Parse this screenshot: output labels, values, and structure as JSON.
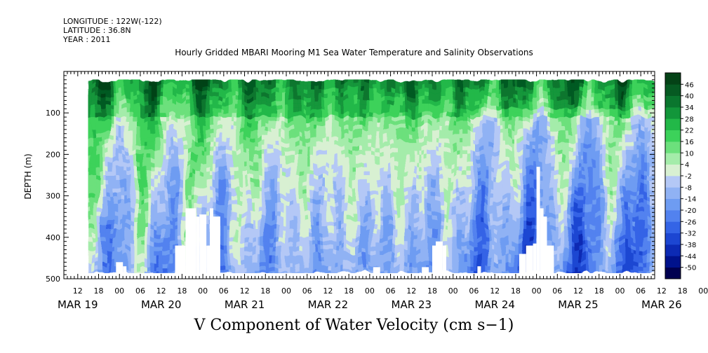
{
  "header": {
    "longitude": "LONGITUDE : 122W(-122)",
    "latitude": "LATITUDE : 36.8N",
    "year": "YEAR : 2011"
  },
  "chart_data": {
    "type": "heatmap",
    "title": "Hourly Gridded MBARI Mooring M1 Sea Water Temperature and Salinity Observations",
    "xlabel": "",
    "ylabel": "DEPTH (m)",
    "value_label": "V Component of Water Velocity (cm s-1)",
    "x_range_hours": [
      "MAR 19 08:00",
      "MAR 26 10:00"
    ],
    "x_hour_ticks": [
      "12",
      "18",
      "00",
      "06",
      "12",
      "18",
      "00",
      "06",
      "12",
      "18",
      "00",
      "06",
      "12",
      "18",
      "00",
      "06",
      "12",
      "18",
      "00",
      "06",
      "12",
      "18",
      "00",
      "06",
      "12",
      "18",
      "00",
      "06",
      "12",
      "18",
      "00",
      "06"
    ],
    "x_day_labels": [
      "MAR 19",
      "MAR 20",
      "MAR 21",
      "MAR 22",
      "MAR 23",
      "MAR 24",
      "MAR 25",
      "MAR 26"
    ],
    "y_ticks": [
      100,
      200,
      300,
      400,
      500
    ],
    "ylim": [
      0,
      500
    ],
    "y_reversed": true,
    "data_depth_range": [
      20,
      485
    ],
    "data_time_range": [
      "MAR 19 15:00",
      "MAR 26 10:00"
    ],
    "colorbar": {
      "levels": [
        -50,
        -44,
        -38,
        -32,
        -26,
        -20,
        -14,
        -8,
        -2,
        4,
        10,
        16,
        22,
        28,
        34,
        40,
        46
      ],
      "tick_labels": [
        "46",
        "40",
        "34",
        "28",
        "22",
        "16",
        "10",
        "4",
        "-2",
        "-8",
        "-14",
        "-20",
        "-26",
        "-32",
        "-38",
        "-44",
        "-50"
      ],
      "colors": [
        "#000050",
        "#00128c",
        "#0c2ab4",
        "#1c46d2",
        "#3464e6",
        "#5282ef",
        "#6e9cf2",
        "#90b2f4",
        "#b4c8f6",
        "#d8f0d2",
        "#a4ecaa",
        "#6ce07c",
        "#3cd25a",
        "#22b848",
        "#12963a",
        "#0a762e",
        "#065a22",
        "#044216"
      ]
    },
    "pattern": "Positive (green) velocities dominate the upper ~100 m throughout; negative (blue) velocities dominate below ~200 m, strongest after MAR 24; vertical alternating bands of positive and negative flow; missing data near the bottom around MAR 19 23h, MAR 20 12h-15h, MAR 23 18h and MAR 25 00h-05h."
  },
  "labels": {
    "bottom": "V Component of Water Velocity (cm s−1)"
  }
}
